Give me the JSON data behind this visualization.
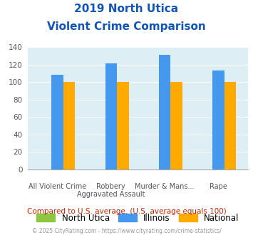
{
  "title_line1": "2019 North Utica",
  "title_line2": "Violent Crime Comparison",
  "x_labels_top": [
    "",
    "Robbery",
    "Murder & Mans...",
    ""
  ],
  "x_labels_bottom": [
    "All Violent Crime",
    "Aggravated Assault",
    "",
    "Rape"
  ],
  "series": {
    "North Utica": {
      "values": [
        0,
        0,
        0,
        0
      ],
      "color": "#8dc63f"
    },
    "Illinois": {
      "values": [
        108,
        121,
        131,
        113
      ],
      "color": "#4499ee"
    },
    "National": {
      "values": [
        100,
        100,
        100,
        100
      ],
      "color": "#ffaa00"
    }
  },
  "ylim": [
    0,
    140
  ],
  "yticks": [
    0,
    20,
    40,
    60,
    80,
    100,
    120,
    140
  ],
  "plot_bg_color": "#ddeef4",
  "grid_color": "#ffffff",
  "title_color": "#1155bb",
  "footer_text": "Compared to U.S. average. (U.S. average equals 100)",
  "footer_color": "#cc2200",
  "copyright_text": "© 2025 CityRating.com - https://www.cityrating.com/crime-statistics/",
  "copyright_color": "#999999",
  "bar_width": 0.22
}
